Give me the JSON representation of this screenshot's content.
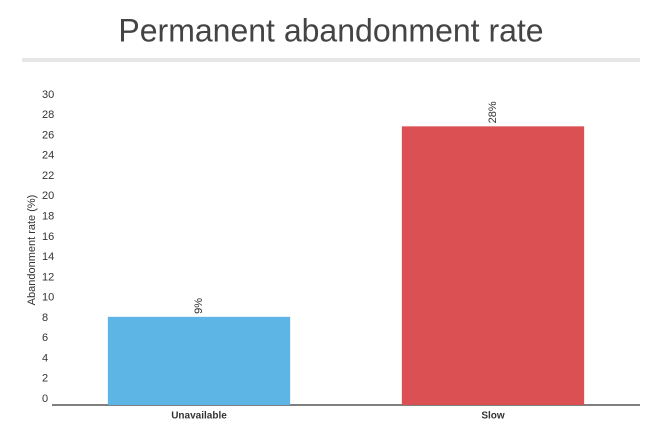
{
  "chart_data": {
    "type": "bar",
    "title": "Permanent abandonment rate",
    "y_label": "Abandonment rate (%)",
    "categories": [
      "Unavailable",
      "Slow"
    ],
    "values": [
      8.7,
      27.5
    ],
    "value_labels": [
      "9%",
      "28%"
    ],
    "colors": [
      "#5db5e5",
      "#db5153"
    ],
    "ylim": [
      0,
      30
    ],
    "yticks": [
      0,
      2,
      4,
      6,
      8,
      10,
      12,
      14,
      16,
      18,
      20,
      22,
      24,
      26,
      28,
      30
    ],
    "grid": false
  }
}
